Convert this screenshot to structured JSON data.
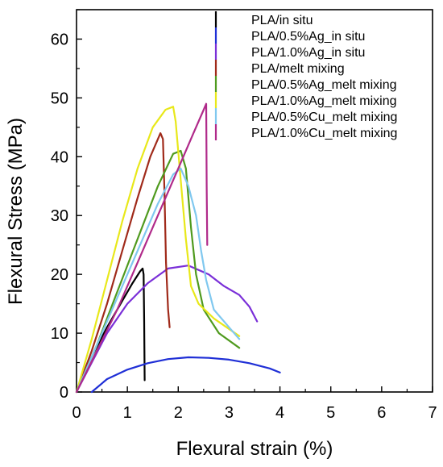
{
  "chart_data": {
    "type": "line",
    "xlabel": "Flexural strain (%)",
    "ylabel": "Flexural Stress (MPa)",
    "xlim": [
      0,
      7
    ],
    "ylim": [
      0,
      65
    ],
    "xticks": [
      "0",
      "1",
      "2",
      "3",
      "4",
      "5",
      "6",
      "7"
    ],
    "yticks": [
      "0",
      "10",
      "20",
      "30",
      "40",
      "50",
      "60"
    ],
    "grid": false,
    "legend_position": "top-right",
    "series": [
      {
        "name": "PLA/in situ",
        "color": "#000000",
        "points": [
          [
            0,
            0
          ],
          [
            0.3,
            6
          ],
          [
            0.6,
            11
          ],
          [
            0.9,
            15.5
          ],
          [
            1.1,
            18.5
          ],
          [
            1.25,
            20.5
          ],
          [
            1.3,
            21
          ],
          [
            1.32,
            20
          ],
          [
            1.33,
            12
          ],
          [
            1.34,
            2
          ]
        ]
      },
      {
        "name": "PLA/0.5%Ag_in situ",
        "color": "#1f2fd6",
        "points": [
          [
            0.3,
            0
          ],
          [
            0.6,
            2.2
          ],
          [
            1.0,
            3.8
          ],
          [
            1.4,
            4.9
          ],
          [
            1.8,
            5.6
          ],
          [
            2.2,
            5.9
          ],
          [
            2.6,
            5.8
          ],
          [
            3.0,
            5.5
          ],
          [
            3.4,
            4.9
          ],
          [
            3.8,
            4.0
          ],
          [
            4.0,
            3.3
          ]
        ]
      },
      {
        "name": "PLA/1.0%Ag_in situ",
        "color": "#7a2fd8",
        "points": [
          [
            0,
            0
          ],
          [
            0.3,
            5
          ],
          [
            0.6,
            10
          ],
          [
            1.0,
            15
          ],
          [
            1.4,
            18.5
          ],
          [
            1.8,
            21
          ],
          [
            2.2,
            21.5
          ],
          [
            2.6,
            20
          ],
          [
            2.9,
            18
          ],
          [
            3.2,
            16.5
          ],
          [
            3.4,
            14.5
          ],
          [
            3.55,
            12
          ]
        ]
      },
      {
        "name": "PLA/melt mixing",
        "color": "#a02a1a",
        "points": [
          [
            0,
            0
          ],
          [
            0.3,
            7
          ],
          [
            0.6,
            15
          ],
          [
            0.9,
            24
          ],
          [
            1.2,
            33
          ],
          [
            1.45,
            40
          ],
          [
            1.65,
            44
          ],
          [
            1.7,
            43
          ],
          [
            1.73,
            34
          ],
          [
            1.76,
            22
          ],
          [
            1.8,
            14
          ],
          [
            1.83,
            11
          ]
        ]
      },
      {
        "name": "PLA/0.5%Ag_melt mixing",
        "color": "#4f9a1e",
        "points": [
          [
            0,
            0
          ],
          [
            0.4,
            8
          ],
          [
            0.8,
            17
          ],
          [
            1.2,
            26
          ],
          [
            1.6,
            35
          ],
          [
            1.9,
            40.5
          ],
          [
            2.05,
            41
          ],
          [
            2.15,
            38
          ],
          [
            2.25,
            28
          ],
          [
            2.35,
            20
          ],
          [
            2.5,
            14
          ],
          [
            2.8,
            10
          ],
          [
            3.2,
            7.5
          ]
        ]
      },
      {
        "name": "PLA/1.0%Ag_melt mixing",
        "color": "#e8e81a",
        "points": [
          [
            0,
            0
          ],
          [
            0.3,
            9
          ],
          [
            0.6,
            19
          ],
          [
            0.9,
            29
          ],
          [
            1.2,
            38
          ],
          [
            1.5,
            45
          ],
          [
            1.75,
            48
          ],
          [
            1.9,
            48.5
          ],
          [
            1.95,
            46
          ],
          [
            2.05,
            36
          ],
          [
            2.15,
            26
          ],
          [
            2.25,
            18
          ],
          [
            2.4,
            15
          ],
          [
            2.7,
            12.5
          ],
          [
            3.2,
            9.5
          ]
        ]
      },
      {
        "name": "PLA/0.5%Cu_melt mixing",
        "color": "#80c8ef",
        "points": [
          [
            0,
            0
          ],
          [
            0.4,
            8
          ],
          [
            0.8,
            16
          ],
          [
            1.2,
            24
          ],
          [
            1.6,
            32
          ],
          [
            1.9,
            37
          ],
          [
            2.05,
            38
          ],
          [
            2.2,
            35
          ],
          [
            2.35,
            30
          ],
          [
            2.45,
            24
          ],
          [
            2.55,
            19
          ],
          [
            2.7,
            14
          ],
          [
            3.0,
            11
          ],
          [
            3.2,
            9
          ]
        ]
      },
      {
        "name": "PLA/1.0%Cu_melt mixing",
        "color": "#b02a8a",
        "points": [
          [
            0,
            0
          ],
          [
            0.4,
            7
          ],
          [
            0.8,
            14
          ],
          [
            1.2,
            22
          ],
          [
            1.6,
            30
          ],
          [
            2.0,
            38
          ],
          [
            2.3,
            44
          ],
          [
            2.5,
            48
          ],
          [
            2.55,
            49
          ],
          [
            2.56,
            35
          ],
          [
            2.57,
            25
          ]
        ]
      }
    ]
  }
}
